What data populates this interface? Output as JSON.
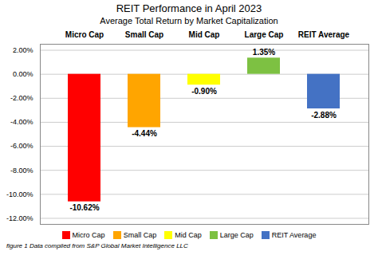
{
  "chart_data": {
    "type": "bar",
    "title": "REIT Performance in April 2023",
    "subtitle": "Average Total Return by Market Capitalization",
    "caption": "figure 1 Data compiled from S&P Global Market Intelligence LLC",
    "categories": [
      "Micro Cap",
      "Small Cap",
      "Mid Cap",
      "Large Cap",
      "REIT Average"
    ],
    "values": [
      -10.62,
      -4.44,
      -0.9,
      1.35,
      -2.88
    ],
    "value_labels": [
      "-10.62%",
      "-4.44%",
      "-0.90%",
      "1.35%",
      "-2.88%"
    ],
    "colors": [
      "#FF0000",
      "#FFA500",
      "#FFFF00",
      "#7DC142",
      "#4472C4"
    ],
    "ylim": [
      -12.5,
      2.5
    ],
    "yticks": [
      {
        "value": -12.0,
        "label": "-12.00%"
      },
      {
        "value": -10.0,
        "label": "-10.00%"
      },
      {
        "value": -8.0,
        "label": "-8.00%"
      },
      {
        "value": -6.0,
        "label": "-6.00%"
      },
      {
        "value": -4.0,
        "label": "-4.00%"
      },
      {
        "value": -2.0,
        "label": "-2.00%"
      },
      {
        "value": 0.0,
        "label": "0.00%"
      },
      {
        "value": 2.0,
        "label": "2.00%"
      }
    ],
    "grid": true,
    "data_labels": true,
    "legend": "bottom"
  }
}
